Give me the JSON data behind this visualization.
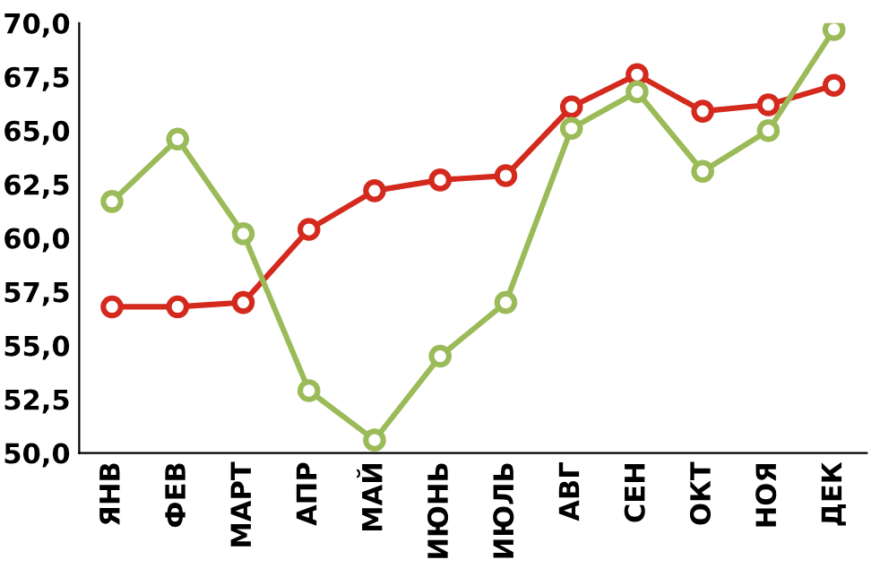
{
  "chart_data": {
    "type": "line",
    "categories": [
      "ЯНВ",
      "ФЕВ",
      "МАРТ",
      "АПР",
      "МАЙ",
      "ИЮНЬ",
      "ИЮЛЬ",
      "АВГ",
      "СЕН",
      "ОКТ",
      "НОЯ",
      "ДЕК"
    ],
    "series": [
      {
        "color": "#d42a1e",
        "values": [
          56.8,
          56.8,
          57.0,
          60.4,
          62.2,
          62.7,
          62.9,
          66.1,
          67.6,
          65.9,
          66.2,
          67.1
        ]
      },
      {
        "color": "#9bbb59",
        "values": [
          61.7,
          64.6,
          60.2,
          52.9,
          50.6,
          54.5,
          57.0,
          65.1,
          66.8,
          63.1,
          65.0,
          69.7
        ]
      }
    ],
    "ylim": [
      50,
      70
    ],
    "yticks": [
      {
        "value": 50,
        "label": "50,0"
      },
      {
        "value": 52.5,
        "label": "52,5"
      },
      {
        "value": 55,
        "label": "55,0"
      },
      {
        "value": 57.5,
        "label": "57,5"
      },
      {
        "value": 60,
        "label": "60,0"
      },
      {
        "value": 62.5,
        "label": "62,5"
      },
      {
        "value": 65,
        "label": "65,0"
      },
      {
        "value": 67.5,
        "label": "67,5"
      },
      {
        "value": 70,
        "label": "70,0"
      }
    ],
    "grid": false,
    "legend": false,
    "marker": "circle",
    "line_style": "solid"
  }
}
